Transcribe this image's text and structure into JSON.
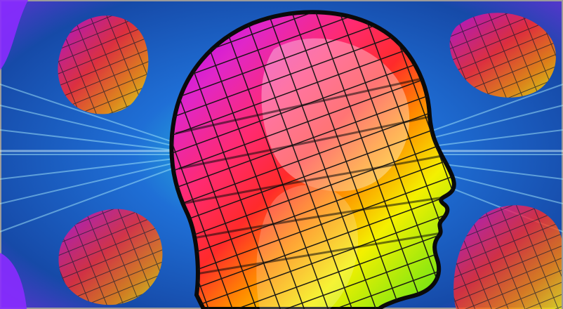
{
  "artwork": {
    "subject": "head-profile-grid",
    "palette": {
      "background_blue": "#1f6fd6",
      "background_cyan": "#2ad4e6",
      "background_purple": "#6a2fd8",
      "magenta": "#e026c8",
      "red": "#ff2a2a",
      "orange": "#ff8a00",
      "yellow": "#f4f000",
      "green": "#49e21a",
      "grid_line": "#121212",
      "outline": "#0a0a0a"
    }
  }
}
